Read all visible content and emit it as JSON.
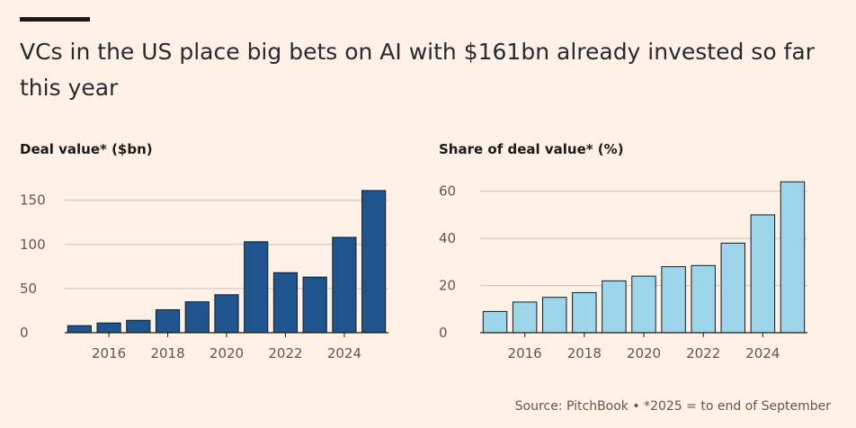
{
  "title": "VCs in the US place big bets on AI with $161bn already invested so far this year",
  "source": "Source: PitchBook • *2025 = to end of September",
  "colors": {
    "background": "#FFF1E5",
    "left_bars": "#1E558F",
    "right_bars": "#9DD6EA",
    "bar_outline": "#1a1a1a",
    "grid": "#CCC1B7"
  },
  "chart_data": [
    {
      "type": "bar",
      "title": "Deal value* ($bn)",
      "x": [
        2015,
        2016,
        2017,
        2018,
        2019,
        2020,
        2021,
        2022,
        2023,
        2024,
        2025
      ],
      "values": [
        8,
        11,
        14,
        26,
        35,
        43,
        103,
        68,
        63,
        108,
        161
      ],
      "yticks": [
        0,
        50,
        100,
        150
      ],
      "xticks": [
        2016,
        2018,
        2020,
        2022,
        2024
      ],
      "ylim": [
        0,
        165
      ],
      "grid": true
    },
    {
      "type": "bar",
      "title": "Share of deal value* (%)",
      "x": [
        2015,
        2016,
        2017,
        2018,
        2019,
        2020,
        2021,
        2022,
        2023,
        2024,
        2025
      ],
      "values": [
        9,
        13,
        15,
        17,
        22,
        24,
        28,
        28.5,
        38,
        50,
        64
      ],
      "yticks": [
        0,
        20,
        40,
        60
      ],
      "xticks": [
        2016,
        2018,
        2020,
        2022,
        2024
      ],
      "ylim": [
        0,
        66
      ],
      "grid": true
    }
  ]
}
